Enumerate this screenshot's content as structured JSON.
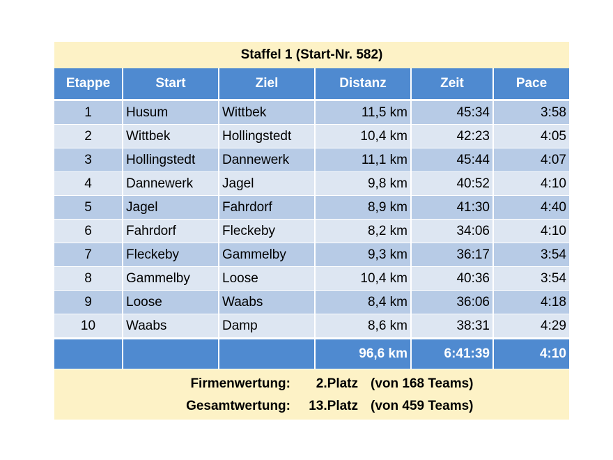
{
  "title": "Staffel 1 (Start-Nr. 582)",
  "columns": [
    "Etappe",
    "Start",
    "Ziel",
    "Distanz",
    "Zeit",
    "Pace"
  ],
  "rows": [
    {
      "etappe": "1",
      "start": "Husum",
      "ziel": "Wittbek",
      "distanz": "11,5 km",
      "zeit": "45:34",
      "pace": "3:58"
    },
    {
      "etappe": "2",
      "start": "Wittbek",
      "ziel": "Hollingstedt",
      "distanz": "10,4 km",
      "zeit": "42:23",
      "pace": "4:05"
    },
    {
      "etappe": "3",
      "start": "Hollingstedt",
      "ziel": "Dannewerk",
      "distanz": "11,1 km",
      "zeit": "45:44",
      "pace": "4:07"
    },
    {
      "etappe": "4",
      "start": "Dannewerk",
      "ziel": "Jagel",
      "distanz": "9,8 km",
      "zeit": "40:52",
      "pace": "4:10"
    },
    {
      "etappe": "5",
      "start": "Jagel",
      "ziel": "Fahrdorf",
      "distanz": "8,9 km",
      "zeit": "41:30",
      "pace": "4:40"
    },
    {
      "etappe": "6",
      "start": "Fahrdorf",
      "ziel": "Fleckeby",
      "distanz": "8,2 km",
      "zeit": "34:06",
      "pace": "4:10"
    },
    {
      "etappe": "7",
      "start": "Fleckeby",
      "ziel": "Gammelby",
      "distanz": "9,3 km",
      "zeit": "36:17",
      "pace": "3:54"
    },
    {
      "etappe": "8",
      "start": "Gammelby",
      "ziel": "Loose",
      "distanz": "10,4 km",
      "zeit": "40:36",
      "pace": "3:54"
    },
    {
      "etappe": "9",
      "start": "Loose",
      "ziel": "Waabs",
      "distanz": "8,4 km",
      "zeit": "36:06",
      "pace": "4:18"
    },
    {
      "etappe": "10",
      "start": "Waabs",
      "ziel": "Damp",
      "distanz": "8,6 km",
      "zeit": "38:31",
      "pace": "4:29"
    }
  ],
  "totals": {
    "distanz": "96,6 km",
    "zeit": "6:41:39",
    "pace": "4:10"
  },
  "rankings": [
    {
      "label": "Firmenwertung:",
      "place": "2.Platz",
      "teams": "(von 168 Teams)"
    },
    {
      "label": "Gesamtwertung:",
      "place": "13.Platz",
      "teams": "(von 459 Teams)"
    }
  ],
  "colors": {
    "header_blue": "#4f8ad0",
    "row_dark": "#b7cbe6",
    "row_light": "#dde6f2",
    "cream": "#fdf2c6"
  }
}
